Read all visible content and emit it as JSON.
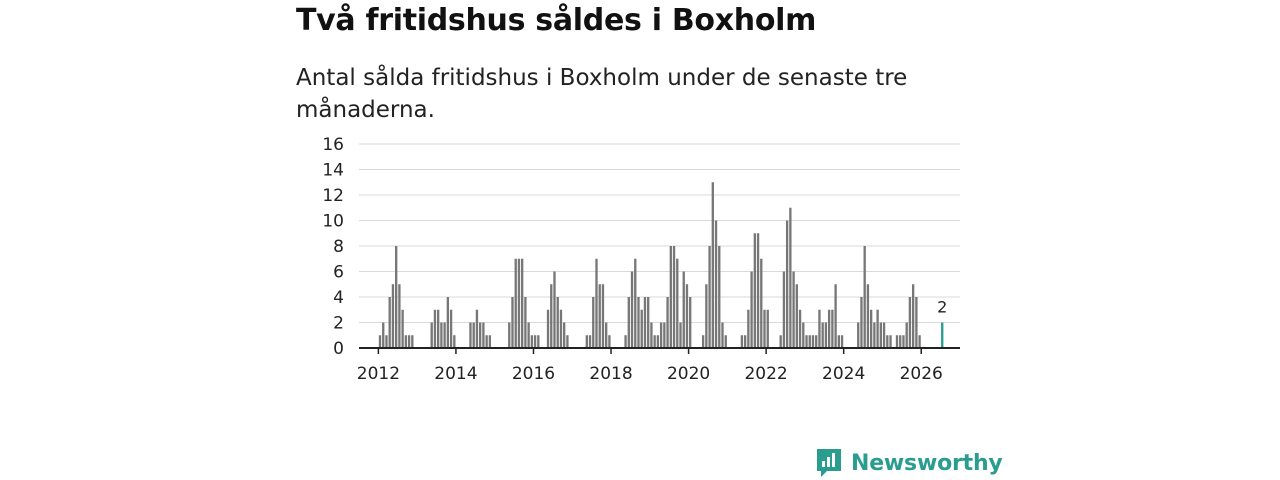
{
  "colors": {
    "bar": "#777777",
    "highlight": "#2a9d8f",
    "grid": "#d9d9d9",
    "axis": "#222222",
    "brand": "#2a9d8f"
  },
  "brand": {
    "name": "Newsworthy",
    "icon": "newsworthy-logo-icon"
  },
  "chart_data": {
    "type": "bar",
    "title": "Två fritidshus såldes i Boxholm",
    "subtitle": "Antal sålda fritidshus i Boxholm under de senaste tre månaderna.",
    "xlabel": "",
    "ylabel": "",
    "ylim": [
      0,
      16
    ],
    "yticks": [
      0,
      2,
      4,
      6,
      8,
      10,
      12,
      14,
      16
    ],
    "xlim": [
      2011.5,
      2027.0
    ],
    "xticks": [
      2012,
      2014,
      2016,
      2018,
      2020,
      2022,
      2024,
      2026
    ],
    "grid": true,
    "legend": "none",
    "start": "2011-05",
    "interval": "month",
    "values": [
      0,
      0,
      0,
      0,
      0,
      0,
      0,
      0,
      1,
      2,
      1,
      4,
      5,
      8,
      5,
      3,
      1,
      1,
      1,
      0,
      0,
      0,
      0,
      0,
      2,
      3,
      3,
      2,
      2,
      4,
      3,
      1,
      0,
      0,
      0,
      0,
      2,
      2,
      3,
      2,
      2,
      1,
      1,
      0,
      0,
      0,
      0,
      0,
      2,
      4,
      7,
      7,
      7,
      4,
      2,
      1,
      1,
      1,
      0,
      0,
      3,
      5,
      6,
      4,
      3,
      2,
      1,
      0,
      0,
      0,
      0,
      0,
      1,
      1,
      4,
      7,
      5,
      5,
      2,
      1,
      0,
      0,
      0,
      0,
      1,
      4,
      6,
      7,
      4,
      3,
      4,
      4,
      2,
      1,
      1,
      2,
      2,
      4,
      8,
      8,
      7,
      2,
      6,
      5,
      4,
      0,
      0,
      0,
      1,
      5,
      8,
      13,
      10,
      8,
      2,
      1,
      0,
      0,
      0,
      0,
      1,
      1,
      3,
      6,
      9,
      9,
      7,
      3,
      3,
      0,
      0,
      0,
      1,
      6,
      10,
      11,
      6,
      5,
      3,
      2,
      1,
      1,
      1,
      1,
      3,
      2,
      2,
      3,
      3,
      5,
      1,
      1,
      0,
      0,
      0,
      0,
      2,
      4,
      8,
      5,
      3,
      2,
      3,
      2,
      2,
      1,
      1,
      0,
      1,
      1,
      1,
      2,
      4,
      5,
      4,
      1,
      0,
      0,
      0,
      0,
      0,
      0,
      2
    ],
    "last_value_label": "2"
  }
}
